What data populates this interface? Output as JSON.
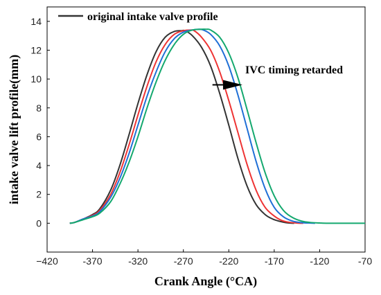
{
  "chart_data": {
    "type": "line",
    "xlabel": "Crank Angle (°CA)",
    "ylabel": "intake valve lift profile(mm)",
    "xlim": [
      -420,
      -70
    ],
    "ylim": [
      -2,
      15
    ],
    "x_ticks": [
      -420,
      -370,
      -320,
      -270,
      -220,
      -170,
      -120,
      -70
    ],
    "x_tick_labels": [
      "−420",
      "-370",
      "-320",
      "-270",
      "-220",
      "-170",
      "-120",
      "-70"
    ],
    "y_ticks": [
      0,
      2,
      4,
      6,
      8,
      10,
      12,
      14
    ],
    "y_tick_labels": [
      "0",
      "2",
      "4",
      "6",
      "8",
      "10",
      "12",
      "14"
    ],
    "legend": {
      "position": "top-left",
      "entries": [
        "original intake valve profile"
      ]
    },
    "grid": false,
    "annotation": {
      "text": "IVC timing retarded",
      "arrow_from": [
        -238,
        9.6
      ],
      "arrow_to": [
        -205,
        9.6
      ]
    },
    "series": [
      {
        "name": "original intake valve profile",
        "color": "#333333",
        "x": [
          -395,
          -390,
          -380,
          -370,
          -362,
          -350,
          -340,
          -330,
          -320,
          -310,
          -300,
          -290,
          -280,
          -272,
          -268,
          -260,
          -250,
          -240,
          -230,
          -220,
          -210,
          -200,
          -190,
          -180,
          -172,
          -165,
          -155,
          -148
        ],
        "y": [
          0,
          0.05,
          0.3,
          0.6,
          1.0,
          2.3,
          4.0,
          6.1,
          8.3,
          10.3,
          11.9,
          12.9,
          13.3,
          13.35,
          13.35,
          13.0,
          12.2,
          10.9,
          9.0,
          6.8,
          4.5,
          2.6,
          1.3,
          0.6,
          0.3,
          0.15,
          0.02,
          0
        ]
      },
      {
        "color": "#ee3333",
        "x": [
          -395,
          -390,
          -380,
          -370,
          -362,
          -350,
          -340,
          -330,
          -320,
          -310,
          -300,
          -290,
          -280,
          -270,
          -262,
          -258,
          -250,
          -240,
          -230,
          -220,
          -210,
          -200,
          -190,
          -180,
          -170,
          -162,
          -155,
          -145,
          -138
        ],
        "y": [
          0,
          0.05,
          0.3,
          0.55,
          0.9,
          2.0,
          3.5,
          5.4,
          7.5,
          9.5,
          11.2,
          12.4,
          13.1,
          13.35,
          13.4,
          13.35,
          12.9,
          12.0,
          10.5,
          8.5,
          6.3,
          4.1,
          2.3,
          1.1,
          0.5,
          0.2,
          0.08,
          0.01,
          0
        ]
      },
      {
        "color": "#1f6fd6",
        "x": [
          -395,
          -390,
          -380,
          -370,
          -362,
          -350,
          -340,
          -330,
          -320,
          -310,
          -300,
          -290,
          -280,
          -270,
          -260,
          -253,
          -248,
          -240,
          -230,
          -220,
          -210,
          -200,
          -190,
          -180,
          -170,
          -160,
          -150,
          -140,
          -130,
          -125
        ],
        "y": [
          0,
          0.05,
          0.3,
          0.5,
          0.8,
          1.8,
          3.1,
          4.8,
          6.8,
          8.8,
          10.5,
          11.9,
          12.8,
          13.25,
          13.4,
          13.45,
          13.4,
          13.1,
          12.3,
          10.9,
          8.9,
          6.6,
          4.3,
          2.4,
          1.1,
          0.45,
          0.15,
          0.04,
          0.01,
          0
        ]
      },
      {
        "color": "#13a86e",
        "x": [
          -395,
          -390,
          -380,
          -370,
          -362,
          -350,
          -340,
          -330,
          -320,
          -310,
          -300,
          -290,
          -280,
          -270,
          -260,
          -250,
          -245,
          -240,
          -230,
          -220,
          -210,
          -200,
          -190,
          -180,
          -170,
          -160,
          -150,
          -140,
          -130,
          -120,
          -110,
          -70
        ],
        "y": [
          0,
          0.05,
          0.25,
          0.45,
          0.7,
          1.5,
          2.7,
          4.2,
          6.0,
          8.0,
          9.8,
          11.3,
          12.4,
          13.1,
          13.4,
          13.45,
          13.45,
          13.4,
          12.9,
          11.8,
          10.1,
          7.9,
          5.6,
          3.5,
          1.9,
          0.9,
          0.4,
          0.15,
          0.05,
          0.02,
          0,
          0
        ]
      }
    ]
  }
}
